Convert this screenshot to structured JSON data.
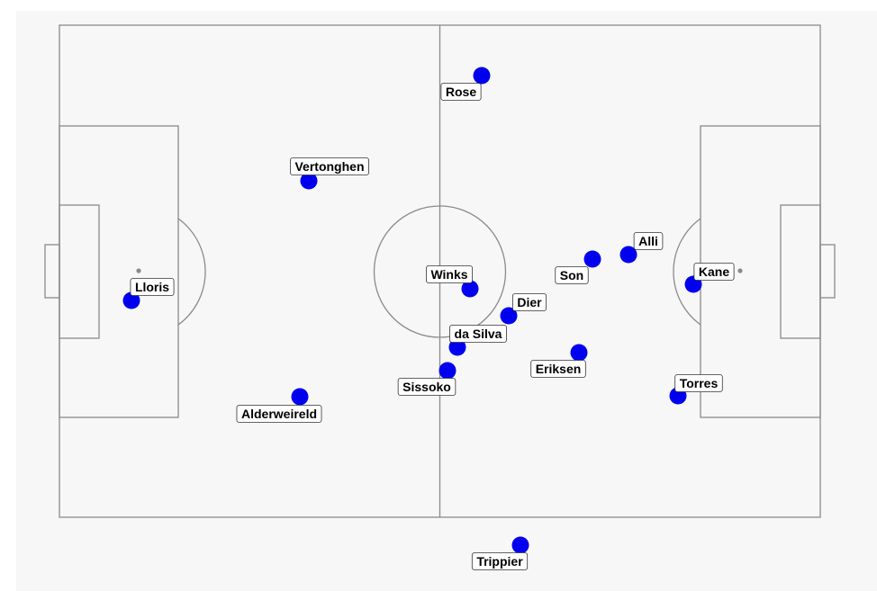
{
  "pitch": {
    "line_color": "#8a8a8a",
    "background": "#f7f7f7",
    "player_color": "#0000ee",
    "label_fill": "#ffffff",
    "label_stroke": "#333333"
  },
  "players": [
    {
      "name": "Rose"
    },
    {
      "name": "Vertonghen"
    },
    {
      "name": "Lloris"
    },
    {
      "name": "Alderweireld"
    },
    {
      "name": "Winks"
    },
    {
      "name": "Son"
    },
    {
      "name": "Alli"
    },
    {
      "name": "Kane"
    },
    {
      "name": "Dier"
    },
    {
      "name": "da Silva"
    },
    {
      "name": "Sissoko"
    },
    {
      "name": "Eriksen"
    },
    {
      "name": "Torres"
    },
    {
      "name": "Trippier"
    }
  ]
}
